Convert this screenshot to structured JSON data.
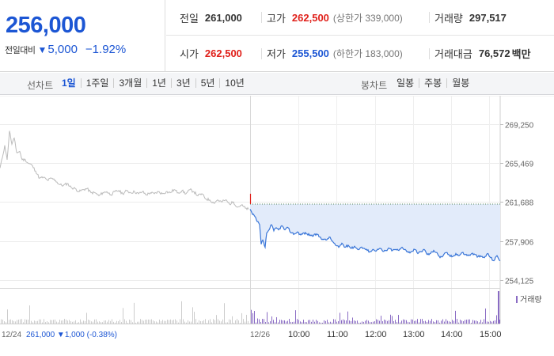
{
  "quote": {
    "price": "256,000",
    "change_label": "전일대비",
    "change_icon": "down-triangle-icon",
    "change_arrow": "▼",
    "change_amount": "5,000",
    "change_percent": "−1.92%",
    "stats_row1": [
      {
        "label": "전일",
        "value": "261,000",
        "tone": "neutral"
      },
      {
        "label": "고가",
        "value": "262,500",
        "tone": "up",
        "sub": "(상한가 339,000)"
      },
      {
        "label": "거래량",
        "value": "297,517",
        "tone": "neutral"
      }
    ],
    "stats_row2": [
      {
        "label": "시가",
        "value": "262,500",
        "tone": "up"
      },
      {
        "label": "저가",
        "value": "255,500",
        "tone": "down",
        "sub": "(하한가 183,000)"
      },
      {
        "label": "거래대금",
        "value": "76,572",
        "tone": "neutral",
        "unit": "백만"
      }
    ]
  },
  "period_bar": {
    "line_label": "선차트",
    "line_periods": [
      "1일",
      "1주일",
      "3개월",
      "1년",
      "3년",
      "5년",
      "10년"
    ],
    "active_line_period": "1일",
    "candle_label": "봉차트",
    "candle_periods": [
      "일봉",
      "주봉",
      "월봉"
    ]
  },
  "colors": {
    "accent_blue": "#1c56d4",
    "up_red": "#e0201a",
    "prev_day_line": "#bbbbbb",
    "intraday_line": "#3a76d8",
    "fill_blue": "#e2ebfa",
    "volume_prev": "#cccccc",
    "volume_today": "#8a6cc4"
  },
  "chart_data": {
    "type": "line",
    "y_ticks": [
      "269,250",
      "265,469",
      "261,688",
      "257,906",
      "254,125"
    ],
    "ylim": [
      254125,
      269250
    ],
    "x_ticks": [
      "12/24",
      "12/26",
      "10:00",
      "11:00",
      "12:00",
      "13:00",
      "14:00",
      "15:00"
    ],
    "reference_line": {
      "value": 261500,
      "style": "dotted"
    },
    "previous_session": {
      "date": "12/24",
      "info": "261,000 ▼1,000 (-0.38%)",
      "anchors": [
        [
          0,
          265000
        ],
        [
          3,
          266000
        ],
        [
          6,
          267200
        ],
        [
          9,
          265800
        ],
        [
          12,
          268600
        ],
        [
          15,
          267300
        ],
        [
          18,
          267900
        ],
        [
          21,
          266500
        ],
        [
          25,
          266600
        ],
        [
          28,
          265800
        ],
        [
          32,
          265800
        ],
        [
          35,
          265500
        ],
        [
          40,
          265300
        ],
        [
          45,
          264700
        ],
        [
          50,
          264000
        ],
        [
          55,
          264100
        ],
        [
          60,
          263800
        ],
        [
          65,
          264000
        ],
        [
          70,
          263800
        ],
        [
          75,
          263400
        ],
        [
          80,
          263300
        ],
        [
          85,
          263500
        ],
        [
          90,
          263100
        ],
        [
          95,
          263000
        ],
        [
          100,
          262700
        ],
        [
          105,
          262900
        ],
        [
          110,
          263000
        ],
        [
          115,
          262600
        ],
        [
          120,
          262600
        ],
        [
          125,
          262300
        ],
        [
          130,
          262600
        ],
        [
          135,
          262700
        ],
        [
          140,
          262400
        ],
        [
          145,
          262700
        ],
        [
          150,
          262800
        ],
        [
          155,
          262500
        ],
        [
          160,
          262800
        ],
        [
          165,
          262600
        ],
        [
          170,
          262700
        ],
        [
          175,
          262500
        ],
        [
          180,
          262700
        ],
        [
          185,
          262400
        ],
        [
          190,
          262600
        ],
        [
          195,
          262500
        ],
        [
          200,
          262700
        ],
        [
          205,
          262500
        ],
        [
          210,
          262700
        ],
        [
          215,
          262600
        ],
        [
          220,
          262900
        ],
        [
          225,
          262600
        ],
        [
          230,
          262800
        ],
        [
          235,
          262500
        ],
        [
          240,
          262900
        ],
        [
          245,
          262700
        ],
        [
          250,
          262300
        ],
        [
          255,
          262500
        ],
        [
          260,
          262000
        ],
        [
          265,
          261900
        ],
        [
          270,
          261600
        ],
        [
          275,
          261900
        ],
        [
          280,
          261700
        ],
        [
          285,
          261900
        ],
        [
          290,
          261500
        ],
        [
          295,
          261700
        ],
        [
          300,
          261200
        ],
        [
          305,
          261400
        ],
        [
          310,
          261100
        ],
        [
          314,
          261000
        ]
      ]
    },
    "current_session": {
      "date": "12/26",
      "open_spike": [
        262500,
        261500
      ],
      "anchors": [
        [
          0,
          261000
        ],
        [
          3,
          260500
        ],
        [
          6,
          260300
        ],
        [
          9,
          259800
        ],
        [
          12,
          259500
        ],
        [
          14,
          257600
        ],
        [
          16,
          258000
        ],
        [
          19,
          257300
        ],
        [
          21,
          258700
        ],
        [
          24,
          259000
        ],
        [
          27,
          259500
        ],
        [
          30,
          258900
        ],
        [
          33,
          259200
        ],
        [
          36,
          259000
        ],
        [
          40,
          259400
        ],
        [
          44,
          259000
        ],
        [
          48,
          259200
        ],
        [
          52,
          258700
        ],
        [
          56,
          258600
        ],
        [
          60,
          258800
        ],
        [
          64,
          258500
        ],
        [
          68,
          258700
        ],
        [
          72,
          258600
        ],
        [
          76,
          258500
        ],
        [
          80,
          258400
        ],
        [
          84,
          258600
        ],
        [
          88,
          258300
        ],
        [
          92,
          258100
        ],
        [
          96,
          258000
        ],
        [
          100,
          258300
        ],
        [
          104,
          257900
        ],
        [
          108,
          257500
        ],
        [
          112,
          257300
        ],
        [
          116,
          257700
        ],
        [
          120,
          257300
        ],
        [
          124,
          257500
        ],
        [
          128,
          257200
        ],
        [
          132,
          257400
        ],
        [
          136,
          257100
        ],
        [
          140,
          257300
        ],
        [
          144,
          257200
        ],
        [
          148,
          257000
        ],
        [
          152,
          256900
        ],
        [
          156,
          257100
        ],
        [
          160,
          257000
        ],
        [
          164,
          257200
        ],
        [
          168,
          256900
        ],
        [
          172,
          257000
        ],
        [
          176,
          257200
        ],
        [
          180,
          257000
        ],
        [
          184,
          257100
        ],
        [
          188,
          257000
        ],
        [
          192,
          257300
        ],
        [
          196,
          257100
        ],
        [
          200,
          256800
        ],
        [
          204,
          256900
        ],
        [
          208,
          257100
        ],
        [
          212,
          256700
        ],
        [
          216,
          256900
        ],
        [
          220,
          257100
        ],
        [
          224,
          256600
        ],
        [
          228,
          256700
        ],
        [
          232,
          257000
        ],
        [
          236,
          256800
        ],
        [
          240,
          256300
        ],
        [
          244,
          256500
        ],
        [
          248,
          256800
        ],
        [
          252,
          256500
        ],
        [
          256,
          256400
        ],
        [
          260,
          256700
        ],
        [
          264,
          256500
        ],
        [
          268,
          256800
        ],
        [
          272,
          256600
        ],
        [
          276,
          256500
        ],
        [
          280,
          256700
        ],
        [
          284,
          256600
        ],
        [
          288,
          256400
        ],
        [
          292,
          256400
        ],
        [
          296,
          256300
        ],
        [
          300,
          256700
        ],
        [
          304,
          256300
        ],
        [
          308,
          256000
        ],
        [
          312,
          256500
        ],
        [
          316,
          256000
        ]
      ]
    },
    "volume_legend": "거래량"
  }
}
